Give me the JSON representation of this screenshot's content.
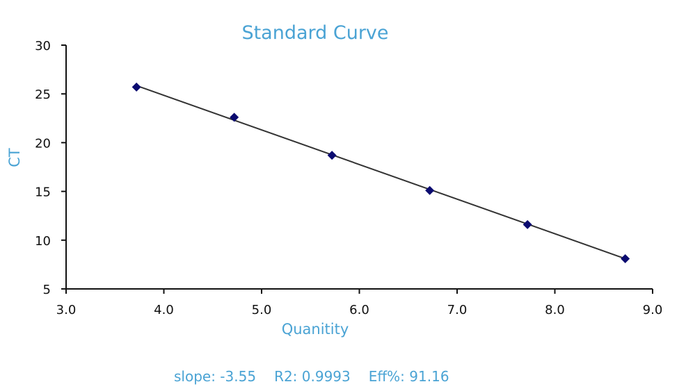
{
  "chart_data": {
    "type": "scatter",
    "title": "Standard Curve",
    "xlabel": "Quanitity",
    "ylabel": "CT",
    "xlim": [
      3.0,
      9.0
    ],
    "ylim": [
      5,
      30
    ],
    "x_ticks": [
      "3.0",
      "4.0",
      "5.0",
      "6.0",
      "7.0",
      "8.0",
      "9.0"
    ],
    "y_ticks": [
      "5",
      "10",
      "15",
      "20",
      "25",
      "30"
    ],
    "points": [
      {
        "x": 3.72,
        "y": 25.7
      },
      {
        "x": 4.72,
        "y": 22.6
      },
      {
        "x": 5.72,
        "y": 18.7
      },
      {
        "x": 6.72,
        "y": 15.1
      },
      {
        "x": 7.72,
        "y": 11.6
      },
      {
        "x": 8.72,
        "y": 8.1
      }
    ],
    "trendline": {
      "x": [
        3.72,
        8.72
      ],
      "y": [
        25.85,
        8.1
      ]
    },
    "grid": false,
    "marker_color": "#0b0b70",
    "line_color": "#333333",
    "text_color": "#4aa3d4"
  },
  "stats": {
    "slope": "slope: -3.55",
    "r2": "R2: 0.9993",
    "eff": "Eff%: 91.16"
  }
}
